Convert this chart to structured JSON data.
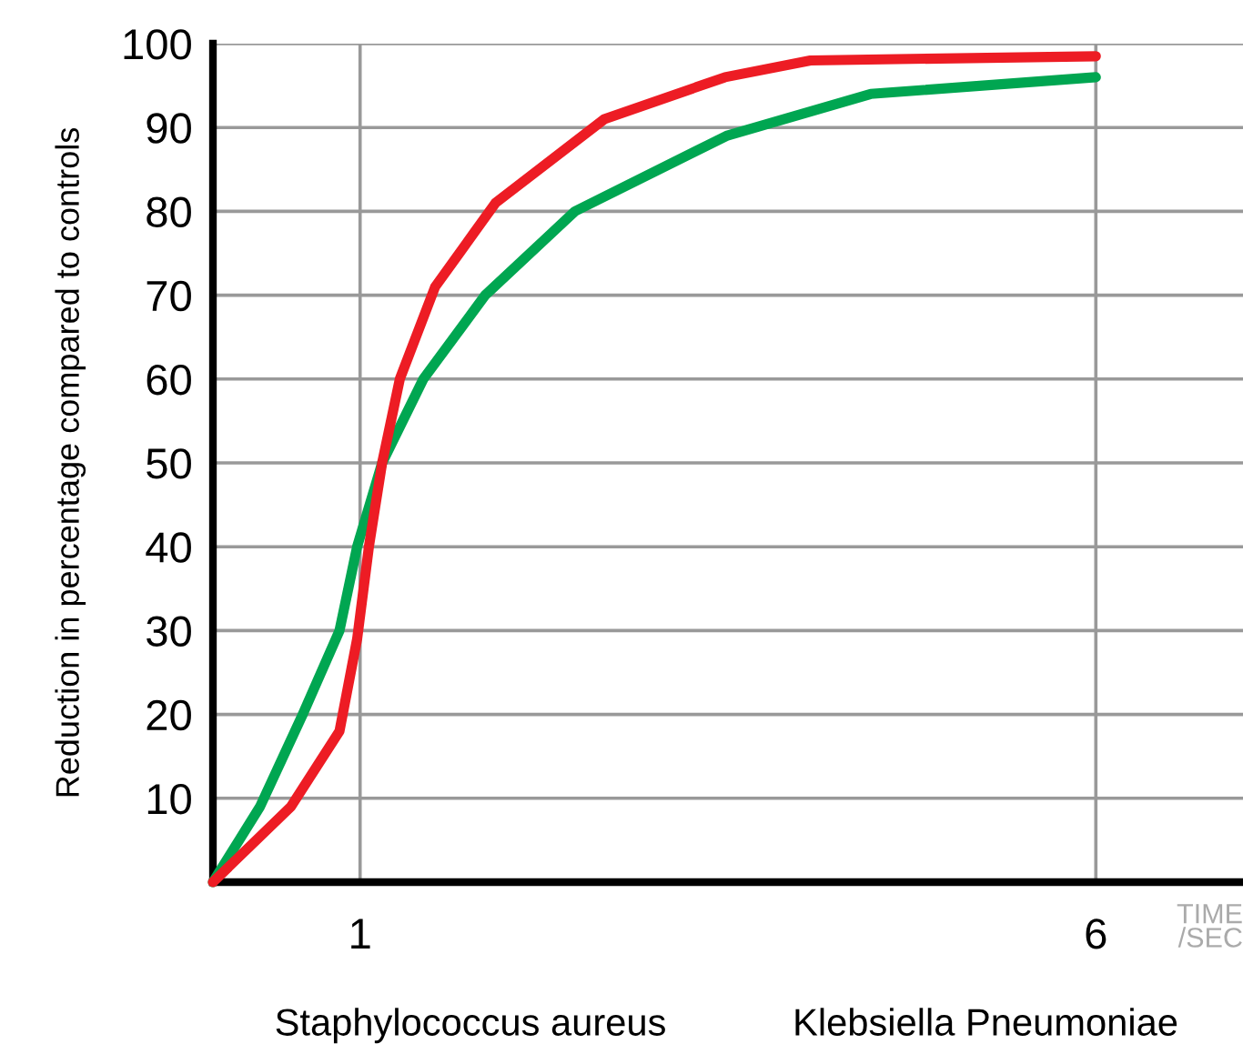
{
  "chart_data": {
    "type": "line",
    "ylabel": "Reduction in percentage compared to controls",
    "xlabel": "TIME\n/SEC",
    "annotations": [
      "Staphylococcus aureus",
      "Klebsiella Pneumoniae"
    ],
    "series": [
      {
        "color": "#00a651",
        "x": [
          0,
          0.32,
          0.61,
          0.86,
          0.98,
          1.15,
          1.43,
          1.85,
          2.46,
          3.49,
          4.47,
          6
        ],
        "values": [
          0,
          9,
          20,
          30,
          40,
          50,
          60,
          70,
          80,
          89,
          94,
          96
        ]
      },
      {
        "color": "#ed1c24",
        "x": [
          0,
          0.53,
          0.86,
          0.98,
          1.06,
          1.15,
          1.27,
          1.51,
          1.92,
          2.66,
          3.48,
          4.06,
          6
        ],
        "values": [
          0,
          9,
          18,
          29,
          40,
          50,
          60,
          71,
          81,
          91,
          96,
          98,
          98.5
        ]
      }
    ],
    "xlim": [
      0,
      7
    ],
    "xticks": [
      1,
      6
    ],
    "ylim": [
      0,
      100
    ],
    "yticks": [
      10,
      20,
      30,
      40,
      50,
      60,
      70,
      80,
      90,
      100
    ],
    "grid": true,
    "marker": "none",
    "line_style": "solid"
  }
}
